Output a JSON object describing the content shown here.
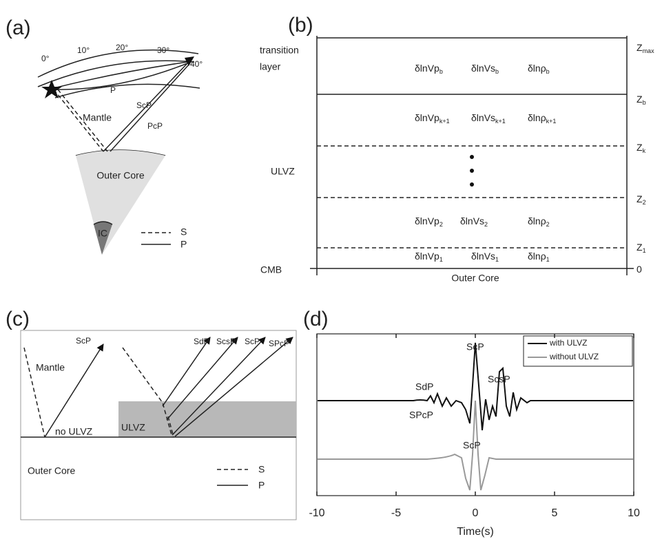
{
  "panels": {
    "a": {
      "label": "(a)",
      "degrees": [
        "0°",
        "10°",
        "20°",
        "30°",
        "40°"
      ],
      "texts": {
        "p": "P",
        "mantle": "Mantle",
        "scp": "ScP",
        "pcp": "PcP",
        "outer_core": "Outer Core",
        "ic": "IC"
      },
      "legend": [
        "S",
        "P"
      ]
    },
    "b": {
      "label": "(b)",
      "left": {
        "transition_1": "transition",
        "transition_2": "layer",
        "ulvz": "ULVZ",
        "cmb": "CMB"
      },
      "depths": [
        {
          "base": "Z",
          "sub": "max"
        },
        {
          "base": "Z",
          "sub": "b"
        },
        {
          "base": "Z",
          "sub": "k"
        },
        {
          "base": "Z",
          "sub": "2"
        },
        {
          "base": "Z",
          "sub": "1"
        },
        {
          "base": "0"
        }
      ],
      "rows": [
        [
          {
            "base": "δlnVp",
            "sub": "b"
          },
          {
            "base": "δlnVs",
            "sub": "b"
          },
          {
            "base": "δlnρ",
            "sub": "b"
          }
        ],
        [
          {
            "base": "δlnVp",
            "sub": "k+1"
          },
          {
            "base": "δlnVs",
            "sub": "k+1"
          },
          {
            "base": "δlnρ",
            "sub": "k+1"
          }
        ],
        [
          {
            "base": "δlnVp",
            "sub": "2"
          },
          {
            "base": "δlnVs",
            "sub": "2"
          },
          {
            "base": "δlnρ",
            "sub": "2"
          }
        ],
        [
          {
            "base": "δlnVp",
            "sub": "1"
          },
          {
            "base": "δlnVs",
            "sub": "1"
          },
          {
            "base": "δlnρ",
            "sub": "1"
          }
        ]
      ],
      "bottom": "Outer Core"
    },
    "c": {
      "label": "(c)",
      "texts": {
        "mantle": "Mantle",
        "scp_left": "ScP",
        "no_ulvz": "no ULVZ",
        "ulvz": "ULVZ",
        "outer_core": "Outer Core",
        "sdp": "SdP",
        "scsp": "ScsP",
        "scp": "ScP",
        "spcp": "SPcP"
      },
      "legend": [
        "S",
        "P"
      ]
    },
    "d": {
      "label": "(d)",
      "xlabel": "Time(s)",
      "xlim": [
        -10,
        10
      ],
      "xticks": [
        -10,
        -5,
        0,
        5,
        10
      ],
      "series": [
        {
          "name": "with ULVZ",
          "color": "#111111"
        },
        {
          "name": "without ULVZ",
          "color": "#999999"
        }
      ],
      "phases": {
        "scp": "ScP",
        "sdp": "SdP",
        "scsp": "ScsP",
        "spcp": "SPcP",
        "scp_gray": "ScP"
      }
    }
  }
}
